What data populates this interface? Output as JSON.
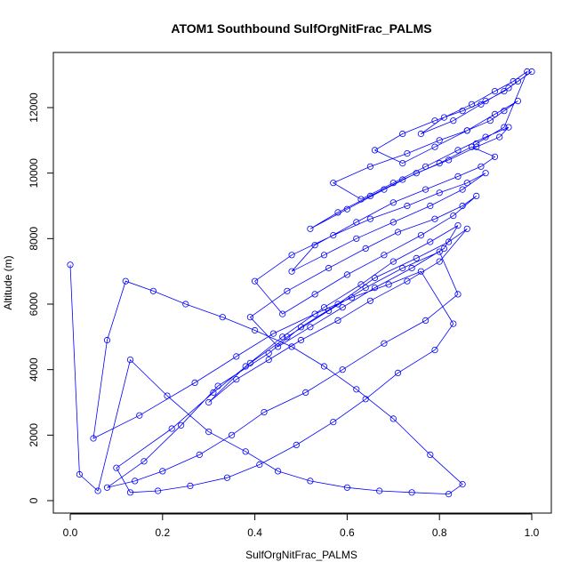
{
  "chart_data": {
    "type": "scatter",
    "title": "ATOM1 Southbound SulfOrgNitFrac_PALMS",
    "xlabel": "SulfOrgNitFrac_PALMS",
    "ylabel": "Altitude (m)",
    "xlim": [
      0.0,
      1.0
    ],
    "ylim": [
      0,
      13000
    ],
    "xticks": [
      0.0,
      0.2,
      0.4,
      0.6,
      0.8,
      1.0
    ],
    "xtick_labels": [
      "0.0",
      "0.2",
      "0.4",
      "0.6",
      "0.8",
      "1.0"
    ],
    "yticks": [
      0,
      2000,
      4000,
      6000,
      8000,
      10000,
      12000
    ],
    "ytick_labels": [
      "0",
      "2000",
      "4000",
      "6000",
      "8000",
      "10000",
      "12000"
    ],
    "grid": false,
    "legend": "none",
    "marker": "open-circle",
    "connected": true,
    "color": "#0000ff",
    "series": [
      {
        "x": [
          0.0,
          0.02,
          0.06,
          0.13,
          0.21,
          0.3,
          0.38,
          0.45,
          0.52,
          0.6,
          0.67,
          0.74,
          0.82,
          0.85,
          0.78,
          0.7,
          0.62,
          0.55,
          0.48,
          0.4,
          0.33,
          0.25,
          0.18,
          0.12,
          0.08,
          0.05,
          0.15,
          0.27,
          0.36,
          0.44,
          0.53,
          0.61,
          0.69,
          0.76,
          0.83,
          0.79,
          0.71,
          0.64,
          0.57,
          0.49,
          0.41,
          0.34,
          0.26,
          0.19,
          0.13,
          0.1,
          0.22,
          0.31,
          0.39,
          0.47,
          0.56,
          0.64,
          0.72,
          0.8,
          0.84,
          0.77,
          0.68,
          0.59,
          0.51,
          0.42,
          0.35,
          0.28,
          0.2,
          0.14,
          0.08,
          0.16,
          0.24,
          0.32,
          0.43,
          0.5,
          0.58,
          0.66,
          0.75,
          0.82,
          0.86,
          0.8,
          0.73,
          0.65,
          0.58,
          0.5,
          0.43,
          0.36,
          0.3,
          0.38,
          0.46,
          0.55,
          0.63,
          0.7,
          0.78,
          0.84,
          0.81,
          0.74,
          0.66,
          0.59,
          0.52,
          0.45,
          0.39,
          0.47,
          0.56,
          0.64,
          0.71,
          0.79,
          0.85,
          0.88,
          0.83,
          0.76,
          0.68,
          0.6,
          0.53,
          0.46,
          0.4,
          0.48,
          0.57,
          0.65,
          0.73,
          0.8,
          0.86,
          0.9,
          0.85,
          0.78,
          0.7,
          0.62,
          0.55,
          0.48,
          0.53,
          0.62,
          0.7,
          0.77,
          0.84,
          0.89,
          0.92,
          0.87,
          0.8,
          0.72,
          0.65,
          0.58,
          0.52,
          0.6,
          0.68,
          0.75,
          0.82,
          0.88,
          0.93,
          0.95,
          0.9,
          0.84,
          0.77,
          0.7,
          0.63,
          0.57,
          0.65,
          0.73,
          0.8,
          0.86,
          0.91,
          0.94,
          0.97,
          0.92,
          0.86,
          0.79,
          0.72,
          0.66,
          0.72,
          0.79,
          0.85,
          0.9,
          0.94,
          0.97,
          1.0,
          0.95,
          0.89,
          0.83,
          0.76,
          0.81,
          0.87,
          0.92,
          0.96,
          0.99,
          0.94,
          0.88
        ],
        "y": [
          7200,
          800,
          300,
          4300,
          3200,
          2100,
          1500,
          900,
          600,
          400,
          300,
          250,
          200,
          500,
          1400,
          2500,
          3400,
          4100,
          4700,
          5200,
          5600,
          6000,
          6400,
          6700,
          4900,
          1900,
          2600,
          3600,
          4400,
          5100,
          5700,
          6200,
          6600,
          7000,
          5400,
          4600,
          3900,
          3100,
          2400,
          1700,
          1100,
          700,
          450,
          300,
          250,
          1000,
          2200,
          3300,
          4200,
          5000,
          5800,
          6500,
          7100,
          7600,
          6300,
          5500,
          4800,
          4000,
          3300,
          2700,
          2000,
          1400,
          900,
          600,
          400,
          1200,
          2300,
          3500,
          4500,
          5300,
          6000,
          6800,
          7400,
          7900,
          8300,
          7300,
          6700,
          6100,
          5500,
          4900,
          4300,
          3700,
          3000,
          4100,
          5000,
          5900,
          6600,
          7300,
          7900,
          8400,
          7700,
          7100,
          6500,
          5900,
          5300,
          4700,
          5600,
          6400,
          7100,
          7700,
          8200,
          8600,
          9000,
          9300,
          8700,
          8100,
          7500,
          6900,
          6300,
          5700,
          6700,
          7500,
          8100,
          8600,
          9000,
          9400,
          9700,
          10000,
          9500,
          9000,
          8500,
          8000,
          7500,
          7000,
          7800,
          8500,
          9100,
          9500,
          9900,
          10200,
          10500,
          10800,
          10300,
          9800,
          9300,
          8800,
          8300,
          8900,
          9500,
          10000,
          10400,
          10800,
          11100,
          11400,
          11100,
          10700,
          10200,
          9700,
          9200,
          9700,
          10200,
          10600,
          11000,
          11300,
          11600,
          11900,
          12200,
          11800,
          11300,
          10800,
          10300,
          10700,
          11200,
          11600,
          11900,
          12200,
          12500,
          12800,
          13100,
          12600,
          12100,
          11600,
          11200,
          11700,
          12100,
          12500,
          12800,
          13100,
          11400,
          10900
        ]
      }
    ]
  }
}
